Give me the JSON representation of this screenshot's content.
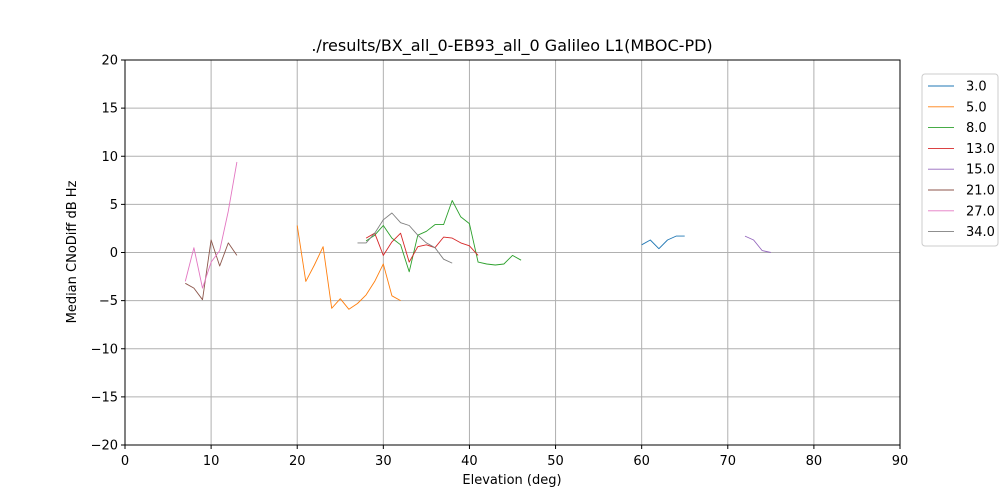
{
  "chart_data": {
    "type": "line",
    "title": "./results/BX_all_0-EB93_all_0 Galileo L1(MBOC-PD)",
    "xlabel": "Elevation (deg)",
    "ylabel": "Median CNoDiff dB Hz",
    "xlim": [
      0,
      90
    ],
    "ylim": [
      -20,
      20
    ],
    "xticks": [
      0,
      10,
      20,
      30,
      40,
      50,
      60,
      70,
      80,
      90
    ],
    "yticks": [
      -20,
      -15,
      -10,
      -5,
      0,
      5,
      10,
      15,
      20
    ],
    "grid": true,
    "legend_position": "right-outside",
    "series": [
      {
        "name": "3.0",
        "color": "#1f77b4",
        "x": [
          60,
          61,
          62,
          63,
          64,
          65
        ],
        "y": [
          0.8,
          1.3,
          0.4,
          1.3,
          1.7,
          1.7
        ]
      },
      {
        "name": "5.0",
        "color": "#ff7f0e",
        "x": [
          20,
          21,
          22,
          23,
          24,
          25,
          26,
          27,
          28,
          29,
          30,
          31,
          32
        ],
        "y": [
          2.8,
          -3.0,
          -1.3,
          0.6,
          -5.8,
          -4.8,
          -5.9,
          -5.3,
          -4.4,
          -3.0,
          -1.2,
          -4.5,
          -5.0
        ]
      },
      {
        "name": "8.0",
        "color": "#2ca02c",
        "x": [
          28,
          29,
          30,
          31,
          32,
          33,
          34,
          35,
          36,
          37,
          38,
          39,
          40,
          41,
          42,
          43,
          44,
          45,
          46
        ],
        "y": [
          1.2,
          1.8,
          2.8,
          1.5,
          0.8,
          -2.0,
          1.8,
          2.2,
          2.9,
          2.9,
          5.4,
          3.7,
          3.0,
          -1.0,
          -1.2,
          -1.3,
          -1.2,
          -0.3,
          -0.8
        ]
      },
      {
        "name": "13.0",
        "color": "#d62728",
        "x": [
          28,
          29,
          30,
          31,
          32,
          33,
          34,
          35,
          36,
          37,
          38,
          39,
          40,
          41
        ],
        "y": [
          1.5,
          2.0,
          -0.3,
          1.1,
          2.0,
          -1.0,
          0.6,
          0.8,
          0.5,
          1.6,
          1.5,
          1.0,
          0.7,
          -0.3
        ]
      },
      {
        "name": "15.0",
        "color": "#9467bd",
        "x": [
          72,
          73,
          74,
          75
        ],
        "y": [
          1.7,
          1.3,
          0.2,
          0.0
        ]
      },
      {
        "name": "21.0",
        "color": "#8c564b",
        "x": [
          7,
          8,
          9,
          10,
          11,
          12,
          13
        ],
        "y": [
          -3.2,
          -3.7,
          -4.9,
          1.3,
          -1.4,
          1.0,
          -0.3
        ]
      },
      {
        "name": "27.0",
        "color": "#e377c2",
        "x": [
          7,
          8,
          9,
          10,
          11,
          12,
          13
        ],
        "y": [
          -3.0,
          0.5,
          -3.7,
          -1.0,
          0.2,
          4.3,
          9.4
        ]
      },
      {
        "name": "34.0",
        "color": "#7f7f7f",
        "x": [
          27,
          28,
          29,
          30,
          31,
          32,
          33,
          34,
          35,
          36,
          37,
          38
        ],
        "y": [
          1.0,
          1.0,
          2.0,
          3.4,
          4.1,
          3.1,
          2.8,
          1.8,
          1.0,
          0.5,
          -0.7,
          -1.1
        ]
      }
    ]
  }
}
